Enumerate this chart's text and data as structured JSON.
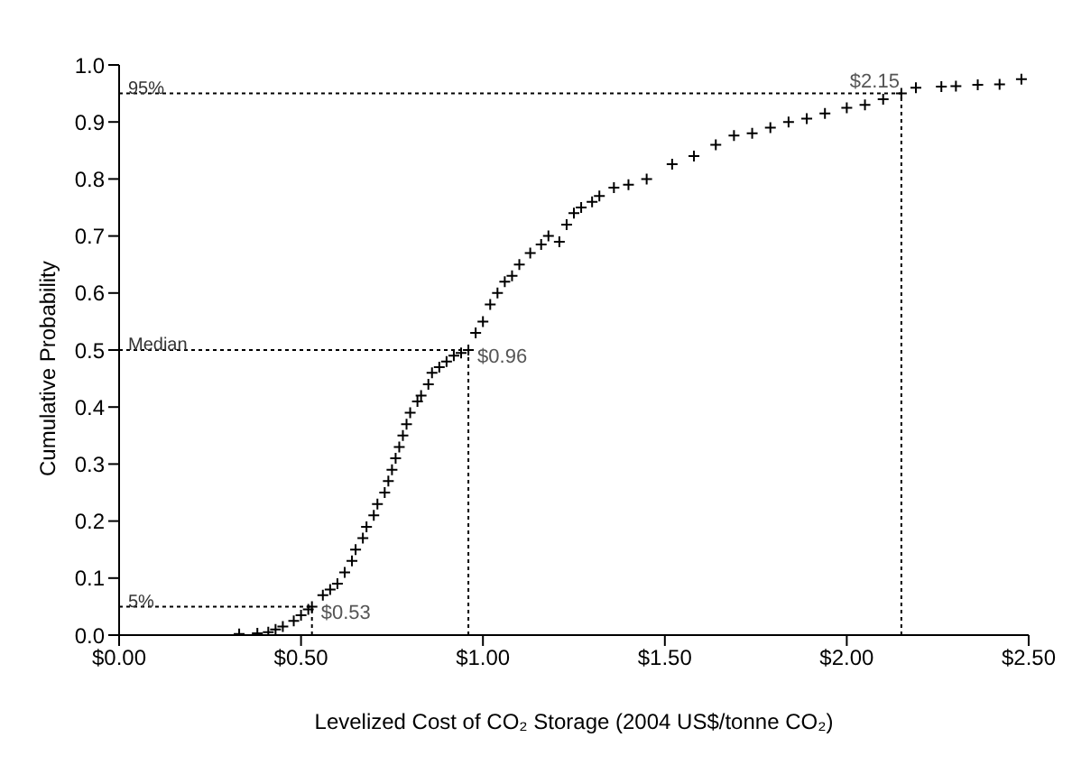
{
  "chart_data": {
    "type": "scatter",
    "xlabel": "Levelized Cost of CO₂ Storage (2004 US$/tonne CO₂)",
    "ylabel": "Cumulative Probability",
    "marker": "cross",
    "grid": false,
    "series": [
      {
        "color": "#000000",
        "x": [
          0.33,
          0.38,
          0.41,
          0.43,
          0.45,
          0.48,
          0.5,
          0.52,
          0.53,
          0.56,
          0.58,
          0.6,
          0.62,
          0.64,
          0.65,
          0.67,
          0.68,
          0.7,
          0.71,
          0.73,
          0.74,
          0.75,
          0.76,
          0.77,
          0.78,
          0.79,
          0.8,
          0.82,
          0.83,
          0.85,
          0.86,
          0.88,
          0.9,
          0.92,
          0.94,
          0.96,
          0.98,
          1.0,
          1.02,
          1.04,
          1.06,
          1.08,
          1.1,
          1.13,
          1.16,
          1.18,
          1.21,
          1.23,
          1.25,
          1.27,
          1.3,
          1.32,
          1.36,
          1.4,
          1.45,
          1.52,
          1.58,
          1.64,
          1.69,
          1.74,
          1.79,
          1.84,
          1.89,
          1.94,
          2.0,
          2.05,
          2.1,
          2.15,
          2.19,
          2.26,
          2.3,
          2.36,
          2.42,
          2.48
        ],
        "values": [
          0.002,
          0.003,
          0.005,
          0.01,
          0.015,
          0.025,
          0.035,
          0.045,
          0.05,
          0.07,
          0.08,
          0.09,
          0.11,
          0.13,
          0.15,
          0.17,
          0.19,
          0.21,
          0.23,
          0.25,
          0.27,
          0.29,
          0.31,
          0.33,
          0.35,
          0.37,
          0.39,
          0.41,
          0.42,
          0.44,
          0.46,
          0.47,
          0.48,
          0.49,
          0.495,
          0.5,
          0.53,
          0.55,
          0.58,
          0.6,
          0.62,
          0.63,
          0.65,
          0.67,
          0.685,
          0.7,
          0.69,
          0.72,
          0.74,
          0.75,
          0.76,
          0.77,
          0.785,
          0.79,
          0.8,
          0.826,
          0.84,
          0.86,
          0.876,
          0.88,
          0.89,
          0.9,
          0.906,
          0.915,
          0.925,
          0.93,
          0.94,
          0.95,
          0.96,
          0.962,
          0.963,
          0.965,
          0.966,
          0.975
        ]
      }
    ],
    "xlim": [
      0,
      2.5
    ],
    "xticks": [
      {
        "value": 0,
        "label": "$0.00"
      },
      {
        "value": 0.5,
        "label": "$0.50"
      },
      {
        "value": 1,
        "label": "$1.00"
      },
      {
        "value": 1.5,
        "label": "$1.50"
      },
      {
        "value": 2,
        "label": "$2.00"
      },
      {
        "value": 2.5,
        "label": "$2.50"
      }
    ],
    "ylim": [
      0,
      1
    ],
    "yticks": [
      {
        "value": 0,
        "label": "0.0"
      },
      0.1,
      0.2,
      0.3,
      0.4,
      0.5,
      0.6,
      0.7,
      0.8,
      0.9,
      {
        "value": 1,
        "label": "1.0"
      }
    ],
    "ref_lines": [
      {
        "axis": "y",
        "value": 0.95,
        "label": "95%",
        "line_style": "dotted"
      },
      {
        "axis": "y",
        "value": 0.5,
        "label": "Median",
        "line_style": "dotted"
      },
      {
        "axis": "y",
        "value": 0.05,
        "label": "5%",
        "line_style": "dotted"
      },
      {
        "axis": "x",
        "value": 2.15,
        "label": "$2.15",
        "line_style": "dotted"
      },
      {
        "axis": "x",
        "value": 0.96,
        "label": "$0.96",
        "line_style": "dotted"
      },
      {
        "axis": "x",
        "value": 0.53,
        "label": "$0.53",
        "line_style": "dotted"
      }
    ]
  }
}
